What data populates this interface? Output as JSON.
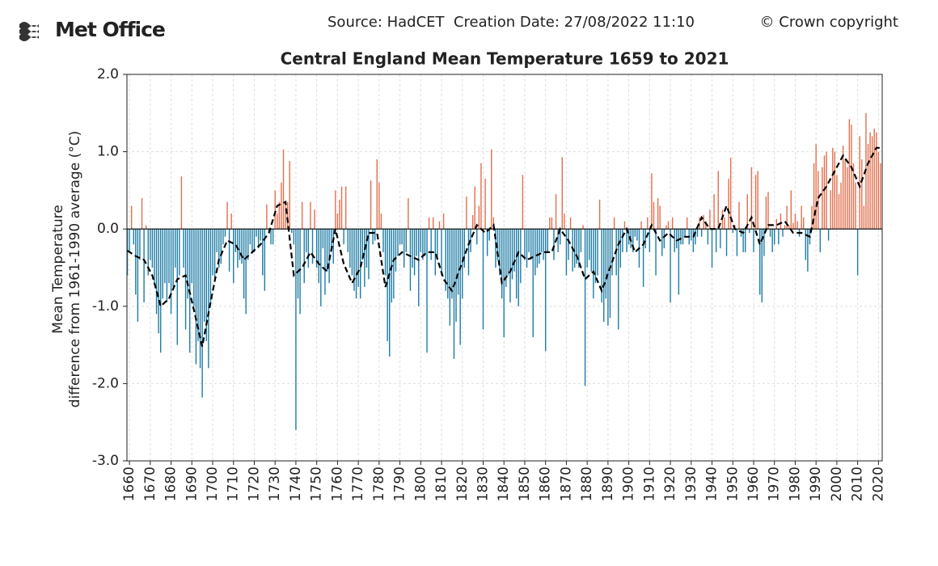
{
  "header": {
    "logo": "Met Office",
    "source": "Source: HadCET  Creation Date: 27/08/2022 11:10",
    "copyright": "© Crown copyright"
  },
  "chart_data": {
    "type": "bar",
    "title": "Central England Mean Temperature 1659 to 2021",
    "ylabel": [
      "Mean Temperature",
      "difference from 1961-1990 average (°C)"
    ],
    "positive_color": "#e2704f",
    "negative_color": "#1f7da6",
    "grid": true,
    "xlim": [
      1658.8,
      2021.8
    ],
    "ylim": [
      -3,
      2
    ],
    "xticks": [
      1660,
      1670,
      1680,
      1690,
      1700,
      1710,
      1720,
      1730,
      1740,
      1750,
      1760,
      1770,
      1780,
      1790,
      1800,
      1810,
      1820,
      1830,
      1840,
      1850,
      1860,
      1870,
      1880,
      1890,
      1900,
      1910,
      1920,
      1930,
      1940,
      1950,
      1960,
      1970,
      1980,
      1990,
      2000,
      2010,
      2020
    ],
    "yticks": [
      {
        "value": -3,
        "label": "-3.0"
      },
      {
        "value": -2,
        "label": "-2.0"
      },
      {
        "value": -1,
        "label": "-1.0"
      },
      {
        "value": 0,
        "label": "0.0"
      },
      {
        "value": 1,
        "label": "1.0"
      },
      {
        "value": 2,
        "label": "2.0"
      }
    ],
    "x": [
      1659,
      1660,
      1661,
      1662,
      1663,
      1664,
      1665,
      1666,
      1667,
      1668,
      1669,
      1670,
      1671,
      1672,
      1673,
      1674,
      1675,
      1676,
      1677,
      1678,
      1679,
      1680,
      1681,
      1682,
      1683,
      1684,
      1685,
      1686,
      1687,
      1688,
      1689,
      1690,
      1691,
      1692,
      1693,
      1694,
      1695,
      1696,
      1697,
      1698,
      1699,
      1700,
      1701,
      1702,
      1703,
      1704,
      1705,
      1706,
      1707,
      1708,
      1709,
      1710,
      1711,
      1712,
      1713,
      1714,
      1715,
      1716,
      1717,
      1718,
      1719,
      1720,
      1721,
      1722,
      1723,
      1724,
      1725,
      1726,
      1727,
      1728,
      1729,
      1730,
      1731,
      1732,
      1733,
      1734,
      1735,
      1736,
      1737,
      1738,
      1739,
      1740,
      1741,
      1742,
      1743,
      1744,
      1745,
      1746,
      1747,
      1748,
      1749,
      1750,
      1751,
      1752,
      1753,
      1754,
      1755,
      1756,
      1757,
      1758,
      1759,
      1760,
      1761,
      1762,
      1763,
      1764,
      1765,
      1766,
      1767,
      1768,
      1769,
      1770,
      1771,
      1772,
      1773,
      1774,
      1775,
      1776,
      1777,
      1778,
      1779,
      1780,
      1781,
      1782,
      1783,
      1784,
      1785,
      1786,
      1787,
      1788,
      1789,
      1790,
      1791,
      1792,
      1793,
      1794,
      1795,
      1796,
      1797,
      1798,
      1799,
      1800,
      1801,
      1802,
      1803,
      1804,
      1805,
      1806,
      1807,
      1808,
      1809,
      1810,
      1811,
      1812,
      1813,
      1814,
      1815,
      1816,
      1817,
      1818,
      1819,
      1820,
      1821,
      1822,
      1823,
      1824,
      1825,
      1826,
      1827,
      1828,
      1829,
      1830,
      1831,
      1832,
      1833,
      1834,
      1835,
      1836,
      1837,
      1838,
      1839,
      1840,
      1841,
      1842,
      1843,
      1844,
      1845,
      1846,
      1847,
      1848,
      1849,
      1850,
      1851,
      1852,
      1853,
      1854,
      1855,
      1856,
      1857,
      1858,
      1859,
      1860,
      1861,
      1862,
      1863,
      1864,
      1865,
      1866,
      1867,
      1868,
      1869,
      1870,
      1871,
      1872,
      1873,
      1874,
      1875,
      1876,
      1877,
      1878,
      1879,
      1880,
      1881,
      1882,
      1883,
      1884,
      1885,
      1886,
      1887,
      1888,
      1889,
      1890,
      1891,
      1892,
      1893,
      1894,
      1895,
      1896,
      1897,
      1898,
      1899,
      1900,
      1901,
      1902,
      1903,
      1904,
      1905,
      1906,
      1907,
      1908,
      1909,
      1910,
      1911,
      1912,
      1913,
      1914,
      1915,
      1916,
      1917,
      1918,
      1919,
      1920,
      1921,
      1922,
      1923,
      1924,
      1925,
      1926,
      1927,
      1928,
      1929,
      1930,
      1931,
      1932,
      1933,
      1934,
      1935,
      1936,
      1937,
      1938,
      1939,
      1940,
      1941,
      1942,
      1943,
      1944,
      1945,
      1946,
      1947,
      1948,
      1949,
      1950,
      1951,
      1952,
      1953,
      1954,
      1955,
      1956,
      1957,
      1958,
      1959,
      1960,
      1961,
      1962,
      1963,
      1964,
      1965,
      1966,
      1967,
      1968,
      1969,
      1970,
      1971,
      1972,
      1973,
      1974,
      1975,
      1976,
      1977,
      1978,
      1979,
      1980,
      1981,
      1982,
      1983,
      1984,
      1985,
      1986,
      1987,
      1988,
      1989,
      1990,
      1991,
      1992,
      1993,
      1994,
      1995,
      1996,
      1997,
      1998,
      1999,
      2000,
      2001,
      2002,
      2003,
      2004,
      2005,
      2006,
      2007,
      2008,
      2009,
      2010,
      2011,
      2012,
      2013,
      2014,
      2015,
      2016,
      2017,
      2018,
      2019,
      2020,
      2021
    ],
    "values": [
      -0.6,
      -0.3,
      0.3,
      -0.2,
      -0.85,
      -1.2,
      -0.4,
      0.4,
      -0.95,
      0.05,
      -0.6,
      -0.4,
      -0.5,
      -0.7,
      -1.1,
      -1.35,
      -1.6,
      -0.9,
      -0.7,
      -0.95,
      -0.7,
      -1.1,
      -0.75,
      -0.5,
      -1.5,
      -0.6,
      0.68,
      -0.5,
      -1.3,
      -0.9,
      -1.6,
      -0.7,
      -1.0,
      -1.75,
      -1.45,
      -1.8,
      -2.18,
      -1.2,
      -1.45,
      -1.8,
      -0.95,
      -0.6,
      -0.65,
      -0.3,
      -0.5,
      -0.45,
      -0.2,
      -0.1,
      0.35,
      -0.55,
      0.2,
      -0.7,
      -0.3,
      -0.5,
      -0.4,
      -0.45,
      -0.9,
      -1.1,
      -0.4,
      -0.2,
      -0.3,
      -0.3,
      -0.1,
      -0.25,
      -0.15,
      -0.6,
      -0.8,
      0.32,
      -0.05,
      -0.2,
      -0.2,
      0.5,
      0.2,
      0.35,
      0.6,
      1.03,
      0.3,
      0.35,
      0.88,
      -0.05,
      -0.2,
      -2.6,
      -0.9,
      -1.1,
      0.35,
      -0.7,
      -0.3,
      -0.5,
      0.35,
      -0.45,
      0.25,
      -0.5,
      -0.7,
      -1.0,
      -0.25,
      -0.85,
      -0.55,
      -0.7,
      -0.3,
      -0.45,
      0.5,
      0.2,
      0.38,
      0.55,
      -0.2,
      0.55,
      -0.3,
      -0.5,
      -0.6,
      -0.8,
      -0.9,
      -0.75,
      -0.9,
      -0.4,
      -0.75,
      -0.5,
      -0.65,
      0.63,
      -0.2,
      -0.15,
      0.9,
      0.6,
      0.2,
      -0.3,
      -0.6,
      -1.45,
      -1.65,
      -0.95,
      -0.9,
      -0.55,
      -0.35,
      -0.2,
      -0.2,
      -0.5,
      -0.3,
      0.4,
      -0.8,
      -0.5,
      -0.6,
      -0.35,
      -1.0,
      -0.3,
      -0.4,
      -0.35,
      -1.6,
      0.15,
      -0.4,
      0.15,
      -0.6,
      -0.4,
      0.1,
      -0.6,
      0.2,
      -0.8,
      -0.9,
      -1.25,
      -0.9,
      -1.68,
      -1.2,
      -0.85,
      -1.5,
      -0.9,
      -0.5,
      0.42,
      -0.6,
      -0.3,
      0.18,
      0.55,
      -0.2,
      0.3,
      0.85,
      -1.3,
      0.65,
      -0.35,
      -0.15,
      1.03,
      0.15,
      -0.5,
      -0.4,
      -0.6,
      -0.9,
      -1.4,
      -0.75,
      -0.6,
      -0.95,
      -0.65,
      -0.55,
      -0.9,
      -1.0,
      -0.7,
      0.7,
      -0.4,
      -0.5,
      -0.3,
      -0.4,
      -1.4,
      -0.6,
      -0.5,
      -0.45,
      -0.3,
      -0.4,
      -1.58,
      -0.3,
      0.15,
      0.15,
      -0.4,
      0.45,
      -0.3,
      -0.2,
      0.93,
      0.2,
      -0.6,
      -0.4,
      0.15,
      -0.55,
      -0.5,
      -0.45,
      -0.5,
      -0.3,
      0.05,
      -2.03,
      -0.5,
      -0.4,
      -0.55,
      -0.9,
      -0.7,
      -0.6,
      0.38,
      -0.95,
      -1.2,
      -0.9,
      -1.25,
      -1.15,
      -0.6,
      0.15,
      -0.6,
      -1.3,
      -0.5,
      -0.3,
      0.1,
      -0.3,
      -0.2,
      -0.25,
      -0.3,
      -0.1,
      -0.15,
      -0.5,
      0.1,
      -0.75,
      -0.25,
      0.15,
      -0.3,
      0.72,
      0.35,
      -0.6,
      0.4,
      0.3,
      -0.35,
      -0.25,
      0.05,
      0.1,
      -0.95,
      0.15,
      -0.3,
      -0.25,
      -0.85,
      -0.2,
      -0.2,
      -0.1,
      0.15,
      -0.2,
      -0.15,
      -0.3,
      -0.2,
      -0.1,
      0.15,
      -0.1,
      0.18,
      0.1,
      -0.2,
      0.25,
      -0.5,
      0.45,
      -0.3,
      0.75,
      -0.25,
      0.25,
      0.15,
      -0.35,
      0.65,
      0.92,
      -0.05,
      0.05,
      -0.35,
      0.35,
      -0.1,
      -0.3,
      -0.3,
      0.45,
      -0.05,
      0.8,
      -0.3,
      0.7,
      0.75,
      -0.85,
      -0.95,
      -0.35,
      0.42,
      0.48,
      -0.1,
      -0.3,
      -0.2,
      0.13,
      -0.2,
      0.2,
      -0.1,
      0.05,
      0.3,
      0.05,
      0.5,
      0.08,
      0.2,
      0.1,
      -0.1,
      0.3,
      0.15,
      -0.4,
      -0.55,
      -0.2,
      0.3,
      0.85,
      1.1,
      0.75,
      -0.3,
      0.8,
      0.95,
      1.0,
      -0.15,
      0.5,
      1.05,
      1.0,
      0.7,
      0.45,
      0.6,
      1.08,
      0.9,
      0.8,
      1.42,
      1.35,
      0.85,
      0.6,
      -0.6,
      1.2,
      0.9,
      0.3,
      1.5,
      1.1,
      1.25,
      1.2,
      1.3,
      1.25,
      1.0,
      0.85
    ],
    "smooth": {
      "color": "#000000",
      "x": [
        1659,
        1663,
        1667,
        1671,
        1675,
        1679,
        1683,
        1687,
        1691,
        1695,
        1699,
        1703,
        1707,
        1711,
        1715,
        1719,
        1723,
        1727,
        1731,
        1735,
        1739,
        1743,
        1747,
        1751,
        1755,
        1759,
        1763,
        1767,
        1771,
        1775,
        1779,
        1783,
        1787,
        1791,
        1795,
        1799,
        1803,
        1807,
        1811,
        1815,
        1819,
        1823,
        1827,
        1831,
        1835,
        1839,
        1843,
        1847,
        1851,
        1855,
        1859,
        1863,
        1867,
        1871,
        1875,
        1879,
        1883,
        1887,
        1891,
        1895,
        1899,
        1903,
        1907,
        1911,
        1915,
        1919,
        1923,
        1927,
        1931,
        1935,
        1939,
        1943,
        1947,
        1951,
        1955,
        1959,
        1963,
        1967,
        1971,
        1975,
        1979,
        1983,
        1987,
        1991,
        1995,
        1999,
        2003,
        2007,
        2011,
        2015,
        2019,
        2021
      ],
      "values": [
        -0.28,
        -0.35,
        -0.4,
        -0.6,
        -1.0,
        -0.9,
        -0.65,
        -0.6,
        -1.05,
        -1.52,
        -0.95,
        -0.4,
        -0.15,
        -0.2,
        -0.4,
        -0.3,
        -0.2,
        -0.05,
        0.3,
        0.35,
        -0.6,
        -0.5,
        -0.3,
        -0.45,
        -0.55,
        0.0,
        -0.45,
        -0.7,
        -0.5,
        -0.05,
        -0.05,
        -0.75,
        -0.4,
        -0.3,
        -0.35,
        -0.4,
        -0.3,
        -0.3,
        -0.65,
        -0.8,
        -0.5,
        -0.2,
        0.05,
        -0.05,
        0.05,
        -0.7,
        -0.55,
        -0.3,
        -0.4,
        -0.35,
        -0.3,
        -0.3,
        0.0,
        -0.15,
        -0.35,
        -0.65,
        -0.55,
        -0.8,
        -0.5,
        -0.2,
        0.0,
        -0.3,
        -0.2,
        0.05,
        -0.15,
        -0.05,
        -0.15,
        -0.1,
        -0.1,
        0.15,
        0.0,
        0.0,
        0.3,
        0.0,
        -0.05,
        0.15,
        -0.2,
        0.05,
        0.05,
        0.1,
        -0.05,
        -0.05,
        -0.1,
        0.4,
        0.55,
        0.75,
        0.95,
        0.8,
        0.55,
        0.85,
        1.05,
        1.05
      ]
    }
  }
}
